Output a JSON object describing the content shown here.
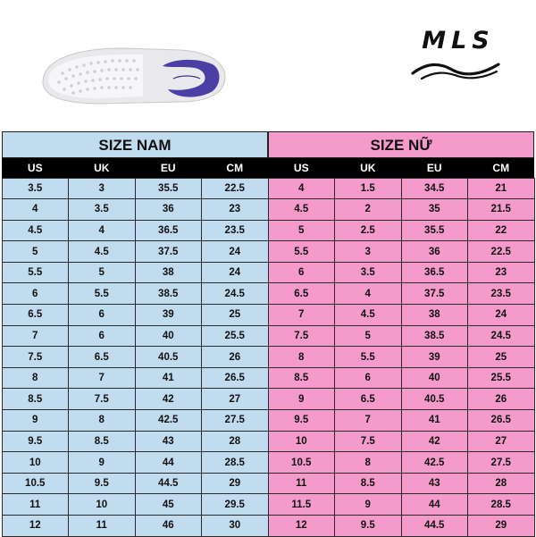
{
  "brand": {
    "name": "MLS"
  },
  "icons": {
    "shoe": "shoe-sole-icon",
    "brand_waves": "wave-icon"
  },
  "colors": {
    "men_bg": "#c2dcef",
    "women_bg": "#f49bcb",
    "header_bg": "#000000",
    "swoosh": "#4b3fa6"
  },
  "men": {
    "title": "SIZE NAM",
    "columns": [
      "US",
      "UK",
      "EU",
      "CM"
    ],
    "rows": [
      [
        "3.5",
        "3",
        "35.5",
        "22.5"
      ],
      [
        "4",
        "3.5",
        "36",
        "23"
      ],
      [
        "4.5",
        "4",
        "36.5",
        "23.5"
      ],
      [
        "5",
        "4.5",
        "37.5",
        "24"
      ],
      [
        "5.5",
        "5",
        "38",
        "24"
      ],
      [
        "6",
        "5.5",
        "38.5",
        "24.5"
      ],
      [
        "6.5",
        "6",
        "39",
        "25"
      ],
      [
        "7",
        "6",
        "40",
        "25.5"
      ],
      [
        "7.5",
        "6.5",
        "40.5",
        "26"
      ],
      [
        "8",
        "7",
        "41",
        "26.5"
      ],
      [
        "8.5",
        "7.5",
        "42",
        "27"
      ],
      [
        "9",
        "8",
        "42.5",
        "27.5"
      ],
      [
        "9.5",
        "8.5",
        "43",
        "28"
      ],
      [
        "10",
        "9",
        "44",
        "28.5"
      ],
      [
        "10.5",
        "9.5",
        "44.5",
        "29"
      ],
      [
        "11",
        "10",
        "45",
        "29.5"
      ],
      [
        "12",
        "11",
        "46",
        "30"
      ]
    ]
  },
  "women": {
    "title": "SIZE NỮ",
    "columns": [
      "US",
      "UK",
      "EU",
      "CM"
    ],
    "rows": [
      [
        "4",
        "1.5",
        "34.5",
        "21"
      ],
      [
        "4.5",
        "2",
        "35",
        "21.5"
      ],
      [
        "5",
        "2.5",
        "35.5",
        "22"
      ],
      [
        "5.5",
        "3",
        "36",
        "22.5"
      ],
      [
        "6",
        "3.5",
        "36.5",
        "23"
      ],
      [
        "6.5",
        "4",
        "37.5",
        "23.5"
      ],
      [
        "7",
        "4.5",
        "38",
        "24"
      ],
      [
        "7.5",
        "5",
        "38.5",
        "24.5"
      ],
      [
        "8",
        "5.5",
        "39",
        "25"
      ],
      [
        "8.5",
        "6",
        "40",
        "25.5"
      ],
      [
        "9",
        "6.5",
        "40.5",
        "26"
      ],
      [
        "9.5",
        "7",
        "41",
        "26.5"
      ],
      [
        "10",
        "7.5",
        "42",
        "27"
      ],
      [
        "10.5",
        "8",
        "42.5",
        "27.5"
      ],
      [
        "11",
        "8.5",
        "43",
        "28"
      ],
      [
        "11.5",
        "9",
        "44",
        "28.5"
      ],
      [
        "12",
        "9.5",
        "44.5",
        "29"
      ]
    ]
  }
}
